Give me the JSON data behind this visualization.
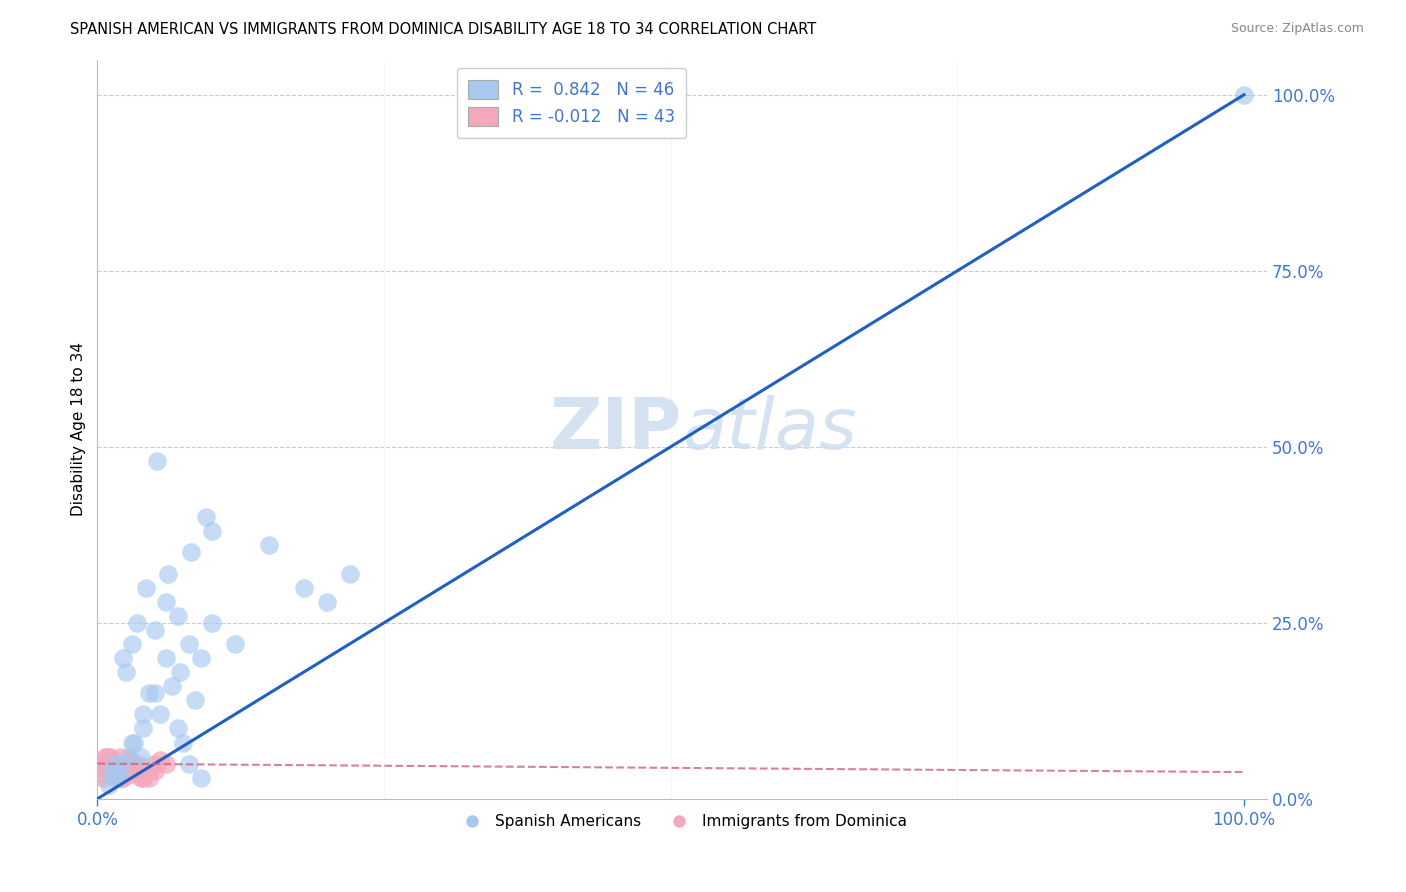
{
  "title": "SPANISH AMERICAN VS IMMIGRANTS FROM DOMINICA DISABILITY AGE 18 TO 34 CORRELATION CHART",
  "source": "Source: ZipAtlas.com",
  "ylabel_label": "Disability Age 18 to 34",
  "legend_blue_r": "R =  0.842",
  "legend_blue_n": "N = 46",
  "legend_pink_r": "R = -0.012",
  "legend_pink_n": "N = 43",
  "legend_blue_label": "Spanish Americans",
  "legend_pink_label": "Immigrants from Dominica",
  "blue_color": "#A8C8F0",
  "pink_color": "#F4A8BB",
  "line_blue_color": "#2060C0",
  "line_pink_color": "#D06080",
  "watermark_color": "#D0DFF0",
  "tick_color": "#4477CC",
  "grid_color": "#CCCCCC",
  "blue_scatter_x": [
    1.5,
    1.8,
    2.0,
    2.2,
    2.5,
    3.0,
    3.2,
    3.5,
    3.8,
    4.0,
    4.5,
    5.0,
    5.5,
    6.0,
    6.5,
    7.0,
    7.5,
    8.0,
    8.5,
    9.0,
    1.0,
    1.2,
    2.8,
    4.2,
    5.2,
    6.2,
    7.2,
    8.2,
    9.5,
    10.0,
    1.5,
    2.0,
    3.0,
    4.0,
    5.0,
    6.0,
    7.0,
    8.0,
    9.0,
    20.0,
    15.0,
    22.0,
    10.0,
    12.0,
    18.0,
    100.0
  ],
  "blue_scatter_y": [
    5.0,
    3.0,
    4.0,
    20.0,
    18.0,
    22.0,
    8.0,
    25.0,
    6.0,
    10.0,
    15.0,
    24.0,
    12.0,
    28.0,
    16.0,
    26.0,
    8.0,
    22.0,
    14.0,
    20.0,
    2.0,
    4.0,
    6.0,
    30.0,
    48.0,
    32.0,
    18.0,
    35.0,
    40.0,
    38.0,
    3.0,
    5.0,
    8.0,
    12.0,
    15.0,
    20.0,
    10.0,
    5.0,
    3.0,
    28.0,
    36.0,
    32.0,
    25.0,
    22.0,
    30.0,
    100.0
  ],
  "pink_scatter_x": [
    0.5,
    1.0,
    1.5,
    2.0,
    2.5,
    0.8,
    1.2,
    1.8,
    2.2,
    3.0,
    0.6,
    1.1,
    1.6,
    2.1,
    2.6,
    3.5,
    4.0,
    0.9,
    1.4,
    1.9,
    0.7,
    1.3,
    1.7,
    2.3,
    2.8,
    3.2,
    3.8,
    4.5,
    5.0,
    0.4,
    0.9,
    1.5,
    2.0,
    2.5,
    3.0,
    3.5,
    4.0,
    4.5,
    5.0,
    5.5,
    1.0,
    2.0,
    6.0
  ],
  "pink_scatter_y": [
    3.0,
    4.0,
    5.0,
    3.5,
    4.5,
    6.0,
    5.5,
    4.0,
    3.0,
    4.5,
    5.0,
    6.0,
    4.0,
    3.0,
    5.5,
    4.0,
    3.0,
    5.0,
    4.5,
    3.5,
    6.0,
    5.0,
    3.0,
    4.5,
    5.5,
    4.0,
    3.0,
    4.0,
    5.0,
    3.5,
    4.0,
    5.0,
    6.0,
    4.0,
    3.5,
    5.0,
    4.5,
    3.0,
    4.0,
    5.5,
    4.0,
    3.0,
    5.0
  ],
  "blue_line_x0": 0.0,
  "blue_line_y0": 0.0,
  "blue_line_x1": 100.0,
  "blue_line_y1": 100.0,
  "pink_line_x0": 0.0,
  "pink_line_y0": 5.0,
  "pink_line_x1": 100.0,
  "pink_line_y1": 3.8,
  "xlim": [
    0,
    100
  ],
  "ylim": [
    0,
    100
  ],
  "yticks": [
    0,
    25,
    50,
    75,
    100
  ],
  "ytick_labels": [
    "0.0%",
    "25.0%",
    "50.0%",
    "75.0%",
    "100.0%"
  ],
  "xtick_labels": [
    "0.0%",
    "100.0%"
  ]
}
